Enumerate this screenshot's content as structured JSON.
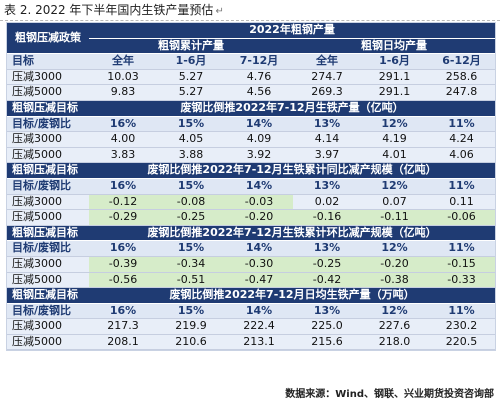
{
  "caption": "表 2. 2022 年下半年国内生铁产量预估",
  "table": {
    "policy_header": "粗钢压减政策",
    "year_header": "2022年粗钢产量",
    "cum_header": "粗钢累计产量",
    "daily_header": "粗钢日均产量",
    "col_label": "目标",
    "cols": [
      "全年",
      "1-6月",
      "7-12月",
      "全年",
      "1-6月",
      "6-12月"
    ],
    "rows1": [
      {
        "label": "压减3000",
        "values": [
          "10.03",
          "5.27",
          "4.76",
          "274.7",
          "291.1",
          "258.6"
        ]
      },
      {
        "label": "压减5000",
        "values": [
          "9.83",
          "5.27",
          "4.56",
          "269.3",
          "291.1",
          "247.8"
        ]
      }
    ],
    "sections": [
      {
        "label": "粗钢压减目标",
        "title": "废钢比倒推2022年7-12月生铁产量（亿吨）",
        "ratio_label": "目标/废钢比",
        "ratios": [
          "16%",
          "15%",
          "14%",
          "13%",
          "12%",
          "11%"
        ],
        "rows": [
          {
            "label": "压减3000",
            "values": [
              "4.00",
              "4.05",
              "4.09",
              "4.14",
              "4.19",
              "4.24"
            ]
          },
          {
            "label": "压减5000",
            "values": [
              "3.83",
              "3.88",
              "3.92",
              "3.97",
              "4.01",
              "4.06"
            ]
          }
        ]
      },
      {
        "label": "粗钢压减目标",
        "title": "废钢比倒推2022年7-12月生铁累计同比减产规模（亿吨）",
        "ratio_label": "目标/废钢比",
        "ratios": [
          "16%",
          "15%",
          "14%",
          "13%",
          "12%",
          "11%"
        ],
        "rows": [
          {
            "label": "压减3000",
            "values": [
              "-0.12",
              "-0.08",
              "-0.03",
              "0.02",
              "0.07",
              "0.11"
            ]
          },
          {
            "label": "压减5000",
            "values": [
              "-0.29",
              "-0.25",
              "-0.20",
              "-0.16",
              "-0.11",
              "-0.06"
            ]
          }
        ]
      },
      {
        "label": "粗钢压减目标",
        "title": "废钢比倒推2022年7-12月生铁累计环比减产规模（亿吨）",
        "ratio_label": "目标/废钢比",
        "ratios": [
          "16%",
          "15%",
          "14%",
          "13%",
          "12%",
          "11%"
        ],
        "rows": [
          {
            "label": "压减3000",
            "values": [
              "-0.39",
              "-0.34",
              "-0.30",
              "-0.25",
              "-0.20",
              "-0.15"
            ]
          },
          {
            "label": "压减5000",
            "values": [
              "-0.56",
              "-0.51",
              "-0.47",
              "-0.42",
              "-0.38",
              "-0.33"
            ]
          }
        ]
      },
      {
        "label": "粗钢压减目标",
        "title": "废钢比倒推2022年7-12月日均生铁产量（万吨）",
        "ratio_label": "目标/废钢比",
        "ratios": [
          "16%",
          "15%",
          "14%",
          "13%",
          "12%",
          "11%"
        ],
        "rows": [
          {
            "label": "压减3000",
            "values": [
              "217.3",
              "219.9",
              "222.4",
              "225.0",
              "227.6",
              "230.2"
            ]
          },
          {
            "label": "压减5000",
            "values": [
              "208.1",
              "210.6",
              "213.1",
              "215.6",
              "218.0",
              "220.5"
            ]
          }
        ]
      }
    ]
  },
  "highlight_color": "#d6ecc9",
  "header_color": "#1f3b73",
  "source": "数据来源：Wind、钢联、兴业期货投资咨询部"
}
